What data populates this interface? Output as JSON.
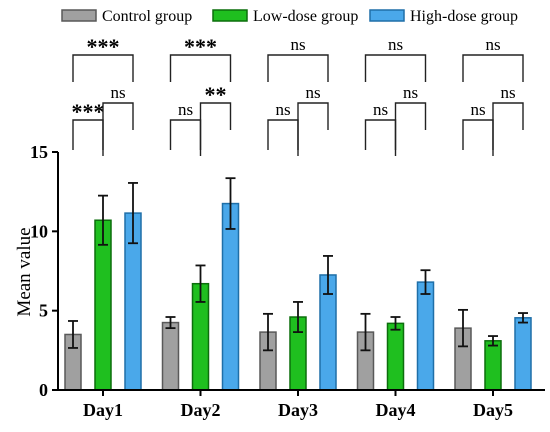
{
  "chart_data": {
    "type": "bar",
    "title": "",
    "xlabel": "",
    "ylabel": "Mean value",
    "ylim": [
      0,
      15
    ],
    "yticks": [
      0,
      5,
      10,
      15
    ],
    "categories": [
      "Day1",
      "Day2",
      "Day3",
      "Day4",
      "Day5"
    ],
    "legend_position": "top",
    "series": [
      {
        "name": "Control group",
        "color": "#a0a0a0",
        "edge": "#595959",
        "values": [
          3.5,
          4.25,
          3.65,
          3.65,
          3.9
        ],
        "errors": [
          0.85,
          0.35,
          1.15,
          1.15,
          1.15
        ]
      },
      {
        "name": "Low-dose group",
        "color": "#1fbf1f",
        "edge": "#0c6e0c",
        "values": [
          10.7,
          6.7,
          4.6,
          4.2,
          3.1
        ],
        "errors": [
          1.55,
          1.15,
          0.95,
          0.4,
          0.3
        ]
      },
      {
        "name": "High-dose group",
        "color": "#4aa8ea",
        "edge": "#1f6fa8",
        "values": [
          11.15,
          11.75,
          7.25,
          6.8,
          4.55
        ],
        "errors": [
          1.9,
          1.6,
          1.2,
          0.75,
          0.3
        ]
      }
    ],
    "significance": [
      {
        "day": "Day1",
        "outer": "***",
        "inner_left": "***",
        "inner_right": "ns"
      },
      {
        "day": "Day2",
        "outer": "***",
        "inner_left": "ns",
        "inner_right": "**"
      },
      {
        "day": "Day3",
        "outer": "ns",
        "inner_left": "ns",
        "inner_right": "ns"
      },
      {
        "day": "Day4",
        "outer": "ns",
        "inner_left": "ns",
        "inner_right": "ns"
      },
      {
        "day": "Day5",
        "outer": "ns",
        "inner_left": "ns",
        "inner_right": "ns"
      }
    ]
  }
}
